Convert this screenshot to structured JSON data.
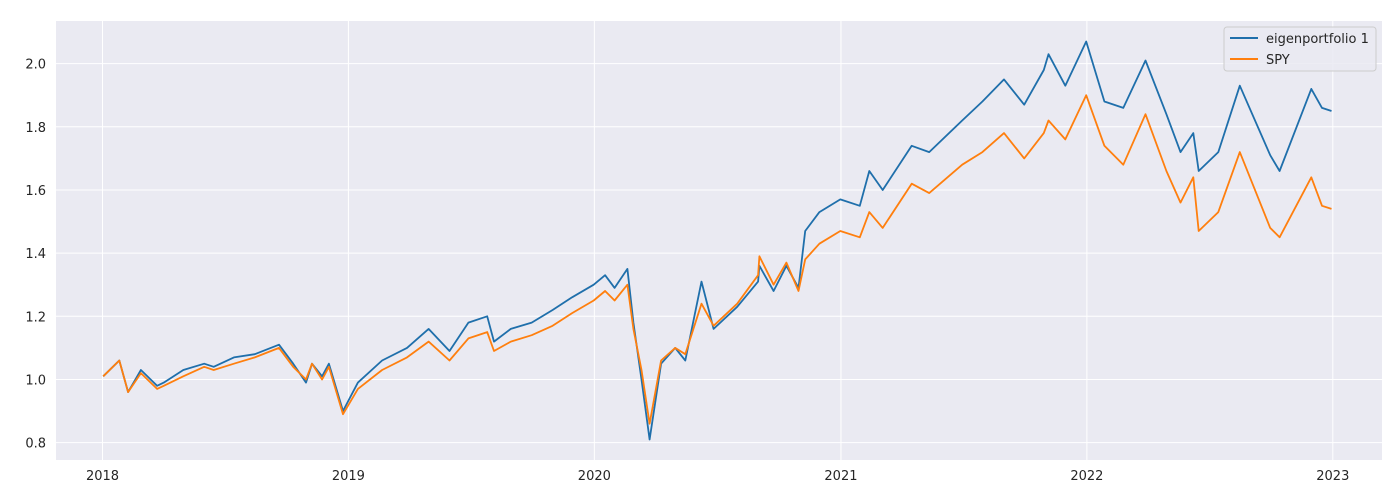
{
  "chart_data": {
    "type": "line",
    "title": "",
    "xlabel": "",
    "ylabel": "",
    "style": "seaborn darkgrid",
    "grid": true,
    "legend_position": "top-right",
    "xlim": [
      "2017-10-24",
      "2023-03-15"
    ],
    "ylim": [
      0.745,
      2.135
    ],
    "x_ticks": [
      "2018",
      "2019",
      "2020",
      "2021",
      "2022",
      "2023"
    ],
    "y_ticks": [
      "0.8",
      "1.0",
      "1.2",
      "1.4",
      "1.6",
      "1.8",
      "2.0"
    ],
    "series": [
      {
        "name": "eigenportfolio 1",
        "color": "#1f6fab",
        "points": [
          [
            "2018-01-02",
            1.01
          ],
          [
            "2018-01-26",
            1.06
          ],
          [
            "2018-02-08",
            0.96
          ],
          [
            "2018-02-27",
            1.03
          ],
          [
            "2018-03-23",
            0.98
          ],
          [
            "2018-04-02",
            0.99
          ],
          [
            "2018-05-01",
            1.03
          ],
          [
            "2018-06-01",
            1.05
          ],
          [
            "2018-06-15",
            1.04
          ],
          [
            "2018-07-15",
            1.07
          ],
          [
            "2018-08-15",
            1.08
          ],
          [
            "2018-09-20",
            1.11
          ],
          [
            "2018-10-11",
            1.05
          ],
          [
            "2018-10-30",
            0.99
          ],
          [
            "2018-11-08",
            1.05
          ],
          [
            "2018-11-23",
            1.01
          ],
          [
            "2018-12-03",
            1.05
          ],
          [
            "2018-12-24",
            0.9
          ],
          [
            "2019-01-15",
            0.99
          ],
          [
            "2019-02-20",
            1.06
          ],
          [
            "2019-03-29",
            1.1
          ],
          [
            "2019-04-30",
            1.16
          ],
          [
            "2019-05-31",
            1.09
          ],
          [
            "2019-06-28",
            1.18
          ],
          [
            "2019-07-26",
            1.2
          ],
          [
            "2019-08-05",
            1.12
          ],
          [
            "2019-08-30",
            1.16
          ],
          [
            "2019-09-30",
            1.18
          ],
          [
            "2019-10-31",
            1.22
          ],
          [
            "2019-11-29",
            1.26
          ],
          [
            "2019-12-31",
            1.3
          ],
          [
            "2020-01-17",
            1.33
          ],
          [
            "2020-01-31",
            1.29
          ],
          [
            "2020-02-19",
            1.35
          ],
          [
            "2020-02-28",
            1.18
          ],
          [
            "2020-03-11",
            1.0
          ],
          [
            "2020-03-23",
            0.81
          ],
          [
            "2020-04-09",
            1.05
          ],
          [
            "2020-04-30",
            1.1
          ],
          [
            "2020-05-15",
            1.06
          ],
          [
            "2020-06-08",
            1.31
          ],
          [
            "2020-06-26",
            1.16
          ],
          [
            "2020-07-31",
            1.23
          ],
          [
            "2020-08-31",
            1.31
          ],
          [
            "2020-09-02",
            1.36
          ],
          [
            "2020-09-23",
            1.28
          ],
          [
            "2020-10-12",
            1.36
          ],
          [
            "2020-10-30",
            1.29
          ],
          [
            "2020-11-09",
            1.47
          ],
          [
            "2020-11-30",
            1.53
          ],
          [
            "2020-12-31",
            1.57
          ],
          [
            "2021-01-29",
            1.55
          ],
          [
            "2021-02-12",
            1.66
          ],
          [
            "2021-03-04",
            1.6
          ],
          [
            "2021-04-16",
            1.74
          ],
          [
            "2021-05-12",
            1.72
          ],
          [
            "2021-06-30",
            1.82
          ],
          [
            "2021-07-30",
            1.88
          ],
          [
            "2021-08-31",
            1.95
          ],
          [
            "2021-09-30",
            1.87
          ],
          [
            "2021-10-29",
            1.98
          ],
          [
            "2021-11-05",
            2.03
          ],
          [
            "2021-11-30",
            1.93
          ],
          [
            "2021-12-31",
            2.07
          ],
          [
            "2022-01-27",
            1.88
          ],
          [
            "2022-02-24",
            1.86
          ],
          [
            "2022-03-29",
            2.01
          ],
          [
            "2022-04-29",
            1.84
          ],
          [
            "2022-05-20",
            1.72
          ],
          [
            "2022-06-08",
            1.78
          ],
          [
            "2022-06-16",
            1.66
          ],
          [
            "2022-07-15",
            1.72
          ],
          [
            "2022-08-16",
            1.93
          ],
          [
            "2022-09-30",
            1.71
          ],
          [
            "2022-10-14",
            1.66
          ],
          [
            "2022-11-30",
            1.92
          ],
          [
            "2022-12-16",
            1.86
          ],
          [
            "2022-12-30",
            1.85
          ]
        ]
      },
      {
        "name": "SPY",
        "color": "#ff7f0e",
        "points": [
          [
            "2018-01-02",
            1.01
          ],
          [
            "2018-01-26",
            1.06
          ],
          [
            "2018-02-08",
            0.96
          ],
          [
            "2018-02-27",
            1.02
          ],
          [
            "2018-03-23",
            0.97
          ],
          [
            "2018-04-02",
            0.98
          ],
          [
            "2018-05-01",
            1.01
          ],
          [
            "2018-06-01",
            1.04
          ],
          [
            "2018-06-15",
            1.03
          ],
          [
            "2018-07-15",
            1.05
          ],
          [
            "2018-08-15",
            1.07
          ],
          [
            "2018-09-20",
            1.1
          ],
          [
            "2018-10-11",
            1.04
          ],
          [
            "2018-10-30",
            1.0
          ],
          [
            "2018-11-08",
            1.05
          ],
          [
            "2018-11-23",
            1.0
          ],
          [
            "2018-12-03",
            1.04
          ],
          [
            "2018-12-24",
            0.89
          ],
          [
            "2019-01-15",
            0.97
          ],
          [
            "2019-02-20",
            1.03
          ],
          [
            "2019-03-29",
            1.07
          ],
          [
            "2019-04-30",
            1.12
          ],
          [
            "2019-05-31",
            1.06
          ],
          [
            "2019-06-28",
            1.13
          ],
          [
            "2019-07-26",
            1.15
          ],
          [
            "2019-08-05",
            1.09
          ],
          [
            "2019-08-30",
            1.12
          ],
          [
            "2019-09-30",
            1.14
          ],
          [
            "2019-10-31",
            1.17
          ],
          [
            "2019-11-29",
            1.21
          ],
          [
            "2019-12-31",
            1.25
          ],
          [
            "2020-01-17",
            1.28
          ],
          [
            "2020-01-31",
            1.25
          ],
          [
            "2020-02-19",
            1.3
          ],
          [
            "2020-02-28",
            1.16
          ],
          [
            "2020-03-11",
            1.03
          ],
          [
            "2020-03-23",
            0.86
          ],
          [
            "2020-04-09",
            1.06
          ],
          [
            "2020-04-30",
            1.1
          ],
          [
            "2020-05-15",
            1.08
          ],
          [
            "2020-06-08",
            1.24
          ],
          [
            "2020-06-26",
            1.17
          ],
          [
            "2020-07-31",
            1.24
          ],
          [
            "2020-08-31",
            1.33
          ],
          [
            "2020-09-02",
            1.39
          ],
          [
            "2020-09-23",
            1.3
          ],
          [
            "2020-10-12",
            1.37
          ],
          [
            "2020-10-30",
            1.28
          ],
          [
            "2020-11-09",
            1.38
          ],
          [
            "2020-11-30",
            1.43
          ],
          [
            "2020-12-31",
            1.47
          ],
          [
            "2021-01-29",
            1.45
          ],
          [
            "2021-02-12",
            1.53
          ],
          [
            "2021-03-04",
            1.48
          ],
          [
            "2021-04-16",
            1.62
          ],
          [
            "2021-05-12",
            1.59
          ],
          [
            "2021-06-30",
            1.68
          ],
          [
            "2021-07-30",
            1.72
          ],
          [
            "2021-08-31",
            1.78
          ],
          [
            "2021-09-30",
            1.7
          ],
          [
            "2021-10-29",
            1.78
          ],
          [
            "2021-11-05",
            1.82
          ],
          [
            "2021-11-30",
            1.76
          ],
          [
            "2021-12-31",
            1.9
          ],
          [
            "2022-01-27",
            1.74
          ],
          [
            "2022-02-24",
            1.68
          ],
          [
            "2022-03-29",
            1.84
          ],
          [
            "2022-04-29",
            1.66
          ],
          [
            "2022-05-20",
            1.56
          ],
          [
            "2022-06-08",
            1.64
          ],
          [
            "2022-06-16",
            1.47
          ],
          [
            "2022-07-15",
            1.53
          ],
          [
            "2022-08-16",
            1.72
          ],
          [
            "2022-09-30",
            1.48
          ],
          [
            "2022-10-14",
            1.45
          ],
          [
            "2022-11-30",
            1.64
          ],
          [
            "2022-12-16",
            1.55
          ],
          [
            "2022-12-30",
            1.54
          ]
        ]
      }
    ]
  }
}
